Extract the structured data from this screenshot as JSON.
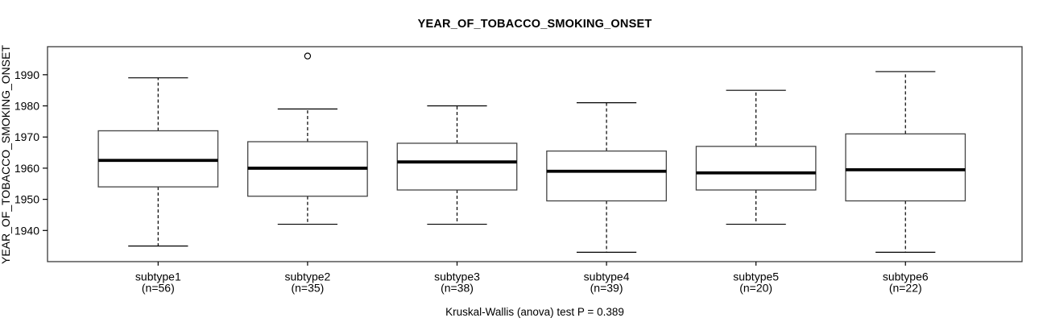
{
  "chart_data": {
    "type": "boxplot",
    "title": "YEAR_OF_TOBACCO_SMOKING_ONSET",
    "ylabel": "YEAR_OF_TOBACCO_SMOKING_ONSET",
    "xlabel": "",
    "caption": "Kruskal-Wallis (anova) test P = 0.389",
    "grid": false,
    "legend": false,
    "ylim": [
      1930,
      1999
    ],
    "yticks": [
      1940,
      1950,
      1960,
      1970,
      1980,
      1990
    ],
    "categories": [
      "subtype1",
      "subtype2",
      "subtype3",
      "subtype4",
      "subtype5",
      "subtype6"
    ],
    "category_sublabels": [
      "(n=56)",
      "(n=35)",
      "(n=38)",
      "(n=39)",
      "(n=20)",
      "(n=22)"
    ],
    "sample_sizes": [
      56,
      35,
      38,
      39,
      20,
      22
    ],
    "series": [
      {
        "label": "subtype1",
        "n": 56,
        "whisker_low": 1935,
        "q1": 1954,
        "median": 1962.5,
        "q3": 1972,
        "whisker_high": 1989,
        "outliers": []
      },
      {
        "label": "subtype2",
        "n": 35,
        "whisker_low": 1942,
        "q1": 1951,
        "median": 1960,
        "q3": 1968.5,
        "whisker_high": 1979,
        "outliers": [
          1996
        ]
      },
      {
        "label": "subtype3",
        "n": 38,
        "whisker_low": 1942,
        "q1": 1953,
        "median": 1962,
        "q3": 1968,
        "whisker_high": 1980,
        "outliers": []
      },
      {
        "label": "subtype4",
        "n": 39,
        "whisker_low": 1933,
        "q1": 1949.5,
        "median": 1959,
        "q3": 1965.5,
        "whisker_high": 1981,
        "outliers": []
      },
      {
        "label": "subtype5",
        "n": 20,
        "whisker_low": 1942,
        "q1": 1953,
        "median": 1958.5,
        "q3": 1967,
        "whisker_high": 1985,
        "outliers": []
      },
      {
        "label": "subtype6",
        "n": 22,
        "whisker_low": 1933,
        "q1": 1949.5,
        "median": 1959.5,
        "q3": 1971,
        "whisker_high": 1991,
        "outliers": []
      }
    ],
    "colors": {
      "line": "#000000",
      "box_stroke": "#444444",
      "box_fill": "#ffffff",
      "frame": "#3a3a3a",
      "background": "#ffffff"
    }
  }
}
